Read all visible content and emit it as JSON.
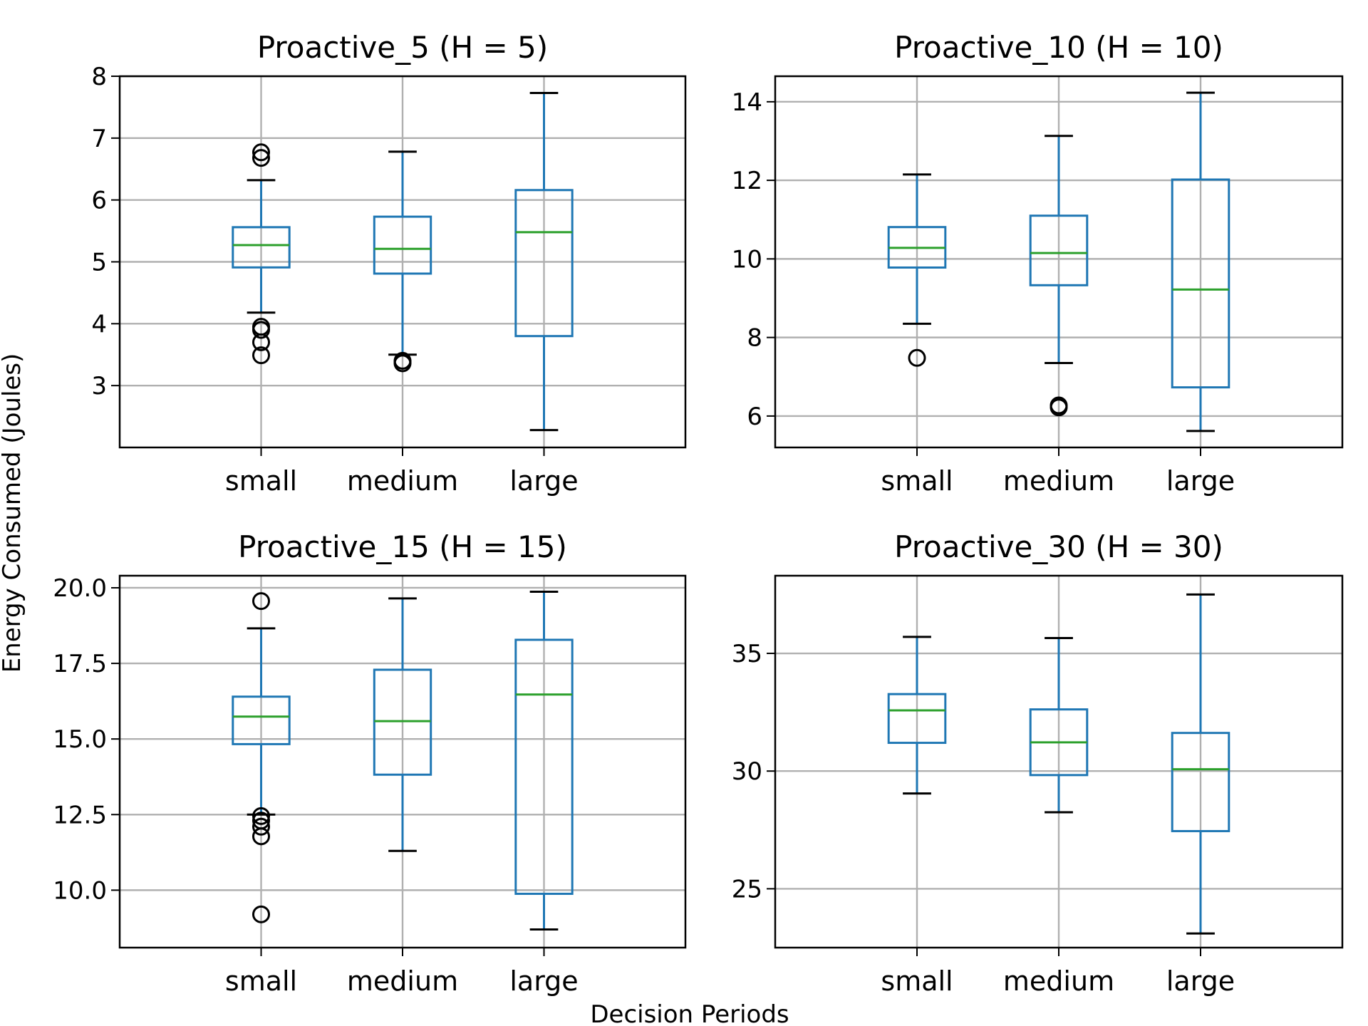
{
  "figure": {
    "xlabel": "Decision Periods",
    "ylabel": "Energy Consumed (Joules)"
  },
  "colors": {
    "box": "#1f77b4",
    "median": "#2ca02c",
    "grid": "#b0b0b0",
    "outlier": "#000000"
  },
  "chart_data": [
    {
      "type": "box",
      "title": "Proactive_5 (H = 5)",
      "categories": [
        "small",
        "medium",
        "large"
      ],
      "ylim": [
        2.0,
        8.0
      ],
      "yticks": [
        3,
        4,
        5,
        6,
        7,
        8
      ],
      "ytick_labels": [
        "3",
        "4",
        "5",
        "6",
        "7",
        "8"
      ],
      "grid": true,
      "boxes": [
        {
          "whislo": 4.18,
          "q1": 4.91,
          "med": 5.27,
          "q3": 5.56,
          "whishi": 6.32,
          "fliers": [
            6.77,
            6.68,
            3.95,
            3.9,
            3.7,
            3.49
          ]
        },
        {
          "whislo": 3.5,
          "q1": 4.81,
          "med": 5.21,
          "q3": 5.73,
          "whishi": 6.78,
          "fliers": [
            3.4,
            3.36
          ]
        },
        {
          "whislo": 2.28,
          "q1": 3.8,
          "med": 5.48,
          "q3": 6.16,
          "whishi": 7.73,
          "fliers": []
        }
      ]
    },
    {
      "type": "box",
      "title": "Proactive_10 (H = 10)",
      "categories": [
        "small",
        "medium",
        "large"
      ],
      "ylim": [
        5.2,
        14.65
      ],
      "yticks": [
        6,
        8,
        10,
        12,
        14
      ],
      "ytick_labels": [
        "6",
        "8",
        "10",
        "12",
        "14"
      ],
      "grid": true,
      "boxes": [
        {
          "whislo": 8.35,
          "q1": 9.78,
          "med": 10.28,
          "q3": 10.81,
          "whishi": 12.15,
          "fliers": [
            7.48
          ]
        },
        {
          "whislo": 7.35,
          "q1": 9.33,
          "med": 10.15,
          "q3": 11.1,
          "whishi": 13.13,
          "fliers": [
            6.27,
            6.22
          ]
        },
        {
          "whislo": 5.62,
          "q1": 6.73,
          "med": 9.22,
          "q3": 12.02,
          "whishi": 14.23,
          "fliers": []
        }
      ]
    },
    {
      "type": "box",
      "title": "Proactive_15 (H = 15)",
      "categories": [
        "small",
        "medium",
        "large"
      ],
      "ylim": [
        8.1,
        20.4
      ],
      "yticks": [
        10.0,
        12.5,
        15.0,
        17.5,
        20.0
      ],
      "ytick_labels": [
        "10.0",
        "12.5",
        "15.0",
        "17.5",
        "20.0"
      ],
      "grid": true,
      "boxes": [
        {
          "whislo": 12.5,
          "q1": 14.83,
          "med": 15.74,
          "q3": 16.4,
          "whishi": 18.66,
          "fliers": [
            19.56,
            12.45,
            12.3,
            12.1,
            11.78,
            9.2
          ]
        },
        {
          "whislo": 11.3,
          "q1": 13.82,
          "med": 15.59,
          "q3": 17.29,
          "whishi": 19.65,
          "fliers": []
        },
        {
          "whislo": 8.7,
          "q1": 9.88,
          "med": 16.47,
          "q3": 18.28,
          "whishi": 19.87,
          "fliers": []
        }
      ]
    },
    {
      "type": "box",
      "title": "Proactive_30 (H = 30)",
      "categories": [
        "small",
        "medium",
        "large"
      ],
      "ylim": [
        22.5,
        38.3
      ],
      "yticks": [
        25,
        30,
        35
      ],
      "ytick_labels": [
        "25",
        "30",
        "35"
      ],
      "grid": true,
      "boxes": [
        {
          "whislo": 29.05,
          "q1": 31.2,
          "med": 32.58,
          "q3": 33.27,
          "whishi": 35.7,
          "fliers": []
        },
        {
          "whislo": 28.25,
          "q1": 29.83,
          "med": 31.22,
          "q3": 32.62,
          "whishi": 35.65,
          "fliers": []
        },
        {
          "whislo": 23.1,
          "q1": 27.45,
          "med": 30.08,
          "q3": 31.62,
          "whishi": 37.5,
          "fliers": []
        }
      ]
    }
  ]
}
